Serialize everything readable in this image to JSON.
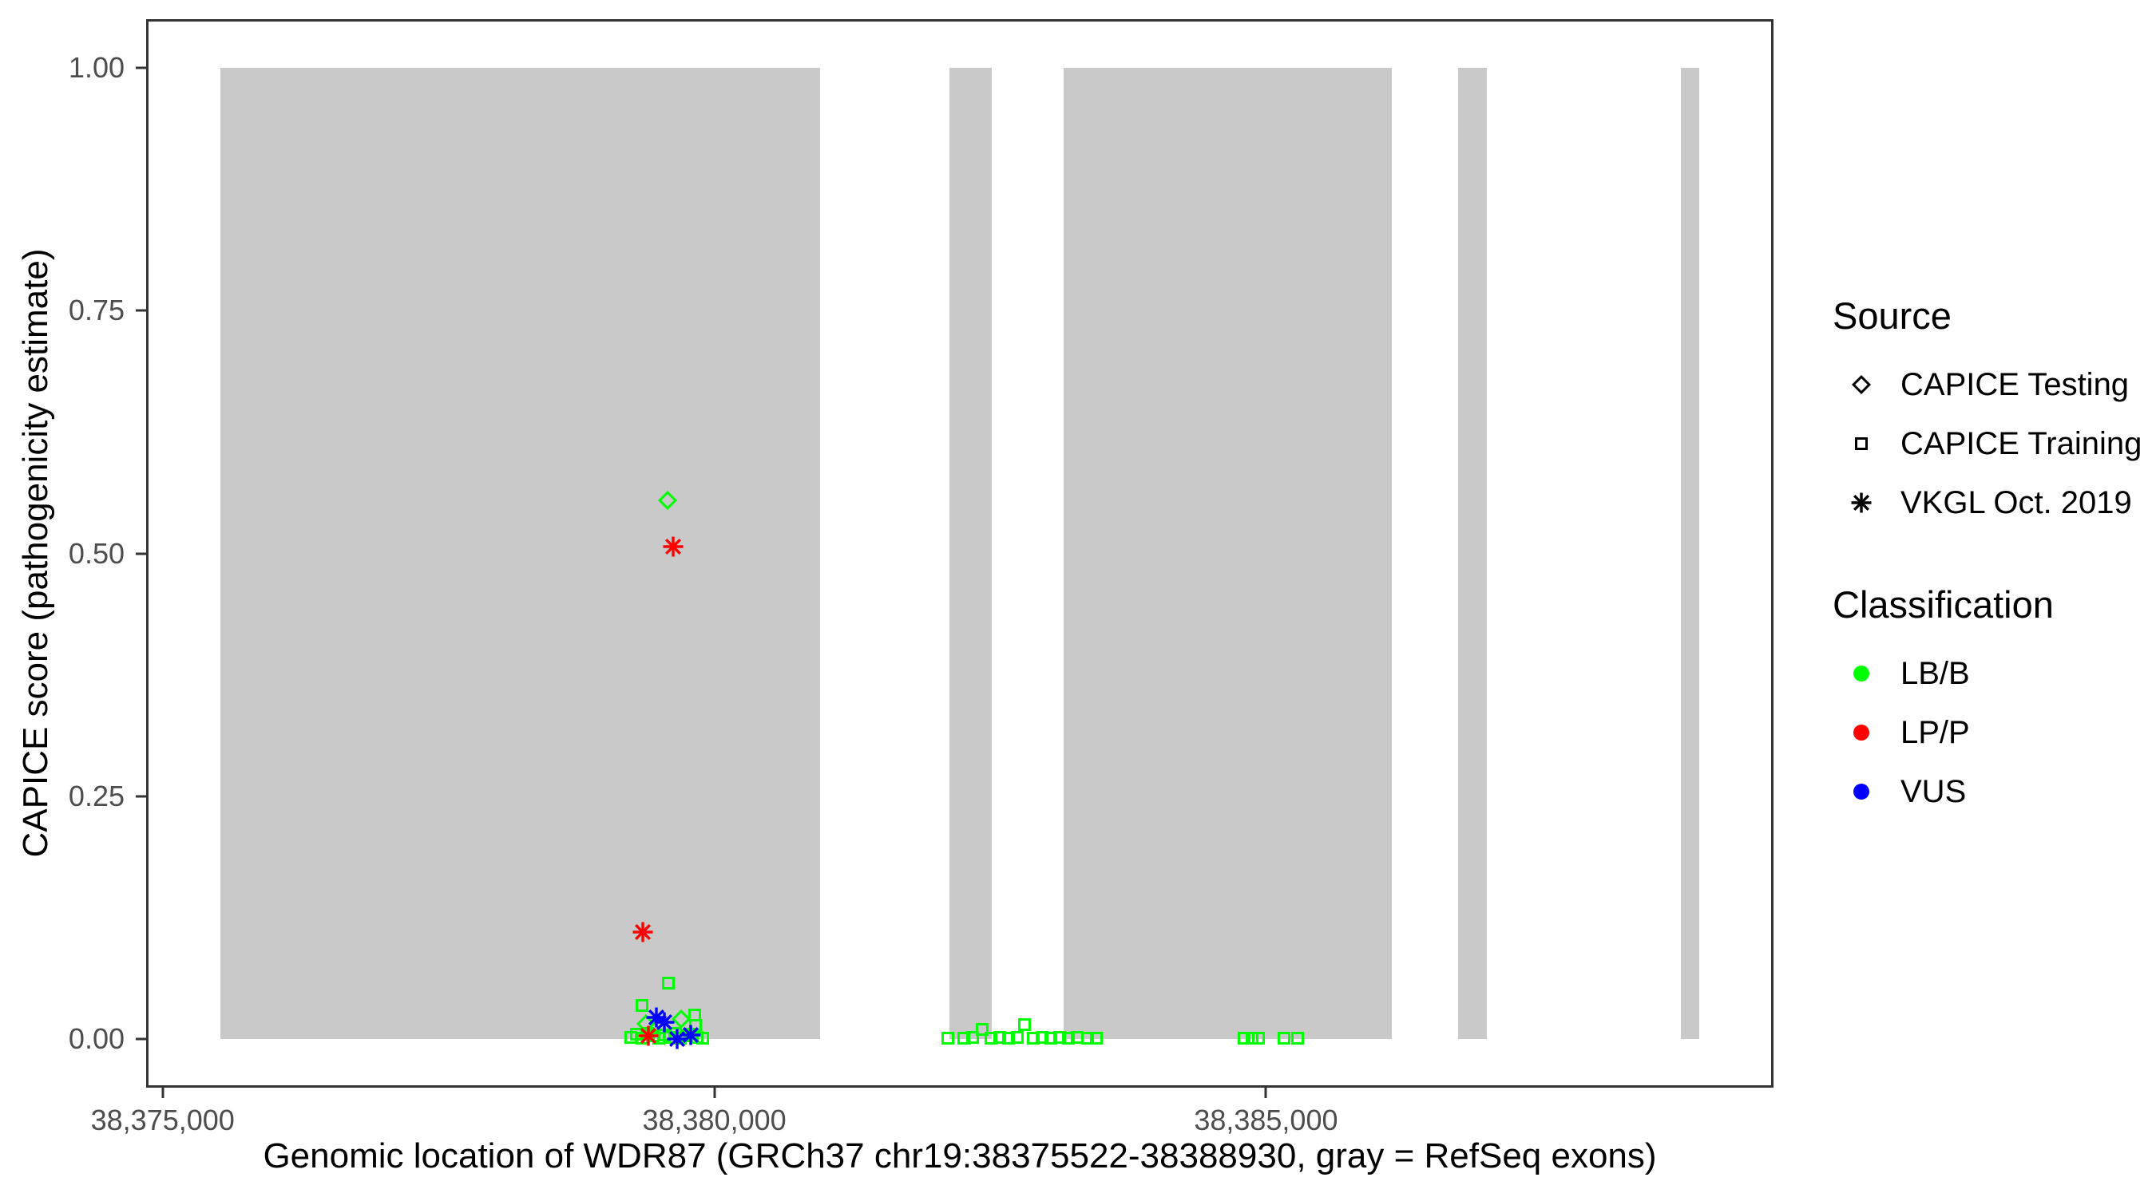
{
  "chart_data": {
    "type": "scatter",
    "title": "",
    "xlabel": "Genomic location of WDR87 (GRCh37 chr19:38375522-38388930, gray = RefSeq exons)",
    "ylabel": "CAPICE score (pathogenicity estimate)",
    "x_domain": [
      38374850,
      38389600
    ],
    "y_domain": [
      -0.05,
      1.05
    ],
    "grid": "off",
    "x_ticks": [
      {
        "value": 38375000,
        "label": "38,375,000"
      },
      {
        "value": 38380000,
        "label": "38,380,000"
      },
      {
        "value": 38385000,
        "label": "38,385,000"
      }
    ],
    "y_ticks": [
      {
        "value": 0.0,
        "label": "0.00"
      },
      {
        "value": 0.25,
        "label": "0.25"
      },
      {
        "value": 0.5,
        "label": "0.50"
      },
      {
        "value": 0.75,
        "label": "0.75"
      },
      {
        "value": 1.0,
        "label": "1.00"
      }
    ],
    "exon_color": "#C9C9C9",
    "exons": [
      [
        38375522,
        38380960
      ],
      [
        38382130,
        38382515
      ],
      [
        38383165,
        38386140
      ],
      [
        38386740,
        38387000
      ],
      [
        38388760,
        38388930
      ]
    ],
    "classification_colors": {
      "LB/B": "#00FF00",
      "LP/P": "#FF0000",
      "VUS": "#0000FF"
    },
    "source_shapes": {
      "CAPICE Testing": "diamond",
      "CAPICE Training": "square",
      "VKGL Oct. 2019": "asterisk"
    },
    "point_format": [
      "x_bp",
      "capice_score",
      "classification",
      "source"
    ],
    "points": [
      [
        38379245,
        0.002,
        "LB/B",
        "CAPICE Training"
      ],
      [
        38379295,
        0.005,
        "LB/B",
        "CAPICE Training"
      ],
      [
        38379345,
        0.001,
        "LB/B",
        "CAPICE Training"
      ],
      [
        38379395,
        0.006,
        "LB/B",
        "CAPICE Training"
      ],
      [
        38379445,
        0.003,
        "LB/B",
        "CAPICE Training"
      ],
      [
        38379495,
        0.001,
        "LB/B",
        "CAPICE Training"
      ],
      [
        38379545,
        0.004,
        "LB/B",
        "CAPICE Training"
      ],
      [
        38379595,
        0.002,
        "LB/B",
        "CAPICE Training"
      ],
      [
        38379645,
        0.006,
        "LB/B",
        "CAPICE Training"
      ],
      [
        38379695,
        0.001,
        "LB/B",
        "CAPICE Training"
      ],
      [
        38379745,
        0.003,
        "LB/B",
        "CAPICE Training"
      ],
      [
        38379795,
        0.005,
        "LB/B",
        "CAPICE Training"
      ],
      [
        38379845,
        0.002,
        "LB/B",
        "CAPICE Training"
      ],
      [
        38379895,
        0.001,
        "LB/B",
        "CAPICE Training"
      ],
      [
        38379345,
        0.035,
        "LB/B",
        "CAPICE Training"
      ],
      [
        38379580,
        0.058,
        "LB/B",
        "CAPICE Training"
      ],
      [
        38379820,
        0.025,
        "LB/B",
        "CAPICE Training"
      ],
      [
        38379830,
        0.014,
        "LB/B",
        "CAPICE Training"
      ],
      [
        38379380,
        0.016,
        "LB/B",
        "CAPICE Testing"
      ],
      [
        38379700,
        0.021,
        "LB/B",
        "CAPICE Testing"
      ],
      [
        38379575,
        0.555,
        "LB/B",
        "CAPICE Testing"
      ],
      [
        38379625,
        0.507,
        "LP/P",
        "VKGL Oct. 2019"
      ],
      [
        38379350,
        0.11,
        "LP/P",
        "VKGL Oct. 2019"
      ],
      [
        38379400,
        0.003,
        "LP/P",
        "VKGL Oct. 2019"
      ],
      [
        38379475,
        0.022,
        "VUS",
        "VKGL Oct. 2019"
      ],
      [
        38379545,
        0.017,
        "VUS",
        "VKGL Oct. 2019"
      ],
      [
        38379665,
        0.0,
        "VUS",
        "VKGL Oct. 2019"
      ],
      [
        38379785,
        0.004,
        "VUS",
        "VKGL Oct. 2019"
      ],
      [
        38382115,
        0.001,
        "LB/B",
        "CAPICE Training"
      ],
      [
        38382260,
        0.001,
        "LB/B",
        "CAPICE Training"
      ],
      [
        38382340,
        0.002,
        "LB/B",
        "CAPICE Training"
      ],
      [
        38382425,
        0.01,
        "LB/B",
        "CAPICE Training"
      ],
      [
        38382505,
        0.001,
        "LB/B",
        "CAPICE Training"
      ],
      [
        38382585,
        0.002,
        "LB/B",
        "CAPICE Training"
      ],
      [
        38382665,
        0.001,
        "LB/B",
        "CAPICE Training"
      ],
      [
        38382745,
        0.002,
        "LB/B",
        "CAPICE Training"
      ],
      [
        38382810,
        0.015,
        "LB/B",
        "CAPICE Training"
      ],
      [
        38382890,
        0.001,
        "LB/B",
        "CAPICE Training"
      ],
      [
        38382970,
        0.002,
        "LB/B",
        "CAPICE Training"
      ],
      [
        38383050,
        0.001,
        "LB/B",
        "CAPICE Training"
      ],
      [
        38383130,
        0.002,
        "LB/B",
        "CAPICE Training"
      ],
      [
        38383210,
        0.001,
        "LB/B",
        "CAPICE Training"
      ],
      [
        38383290,
        0.002,
        "LB/B",
        "CAPICE Training"
      ],
      [
        38383380,
        0.001,
        "LB/B",
        "CAPICE Training"
      ],
      [
        38383460,
        0.001,
        "LB/B",
        "CAPICE Training"
      ],
      [
        38384800,
        0.001,
        "LB/B",
        "CAPICE Training"
      ],
      [
        38384875,
        0.001,
        "LB/B",
        "CAPICE Training"
      ],
      [
        38384930,
        0.001,
        "LB/B",
        "CAPICE Training"
      ],
      [
        38385165,
        0.001,
        "LB/B",
        "CAPICE Training"
      ],
      [
        38385290,
        0.001,
        "LB/B",
        "CAPICE Training"
      ]
    ]
  },
  "legend": {
    "source": {
      "title": "Source",
      "items": [
        {
          "label": "CAPICE Testing",
          "shape": "diamond",
          "color": "#000000"
        },
        {
          "label": "CAPICE Training",
          "shape": "square",
          "color": "#000000"
        },
        {
          "label": "VKGL Oct. 2019",
          "shape": "asterisk",
          "color": "#000000"
        }
      ]
    },
    "classification": {
      "title": "Classification",
      "items": [
        {
          "label": "LB/B",
          "shape": "dot",
          "color": "#00FF00"
        },
        {
          "label": "LP/P",
          "shape": "dot",
          "color": "#FF0000"
        },
        {
          "label": "VUS",
          "shape": "dot",
          "color": "#0000FF"
        }
      ]
    }
  }
}
